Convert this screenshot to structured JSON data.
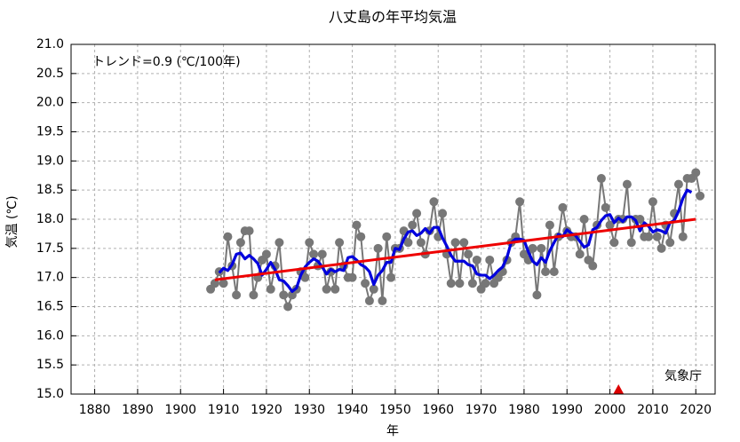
{
  "chart_data": {
    "type": "line",
    "title": "八丈島の年平均気温",
    "annotation": "トレンド=0.9 (℃/100年)",
    "source": "気象庁",
    "xlabel": "年",
    "ylabel": "気温 (℃)",
    "x": [
      1907,
      1908,
      1909,
      1910,
      1911,
      1912,
      1913,
      1914,
      1915,
      1916,
      1917,
      1918,
      1919,
      1920,
      1921,
      1922,
      1923,
      1924,
      1925,
      1926,
      1927,
      1928,
      1929,
      1930,
      1931,
      1932,
      1933,
      1934,
      1935,
      1936,
      1937,
      1938,
      1939,
      1940,
      1941,
      1942,
      1943,
      1944,
      1945,
      1946,
      1947,
      1948,
      1949,
      1950,
      1951,
      1952,
      1953,
      1954,
      1955,
      1956,
      1957,
      1958,
      1959,
      1960,
      1961,
      1962,
      1963,
      1964,
      1965,
      1966,
      1967,
      1968,
      1969,
      1970,
      1971,
      1972,
      1973,
      1974,
      1975,
      1976,
      1977,
      1978,
      1979,
      1980,
      1981,
      1982,
      1983,
      1984,
      1985,
      1986,
      1987,
      1988,
      1989,
      1990,
      1991,
      1992,
      1993,
      1994,
      1995,
      1996,
      1997,
      1998,
      1999,
      2000,
      2001,
      2002,
      2003,
      2004,
      2005,
      2006,
      2007,
      2008,
      2009,
      2010,
      2011,
      2012,
      2013,
      2014,
      2015,
      2016,
      2017,
      2018,
      2019,
      2020,
      2021
    ],
    "series": [
      {
        "color": "#777777",
        "markers": true,
        "values": [
          16.8,
          16.9,
          17.1,
          16.9,
          17.7,
          17.2,
          16.7,
          17.6,
          17.8,
          17.8,
          16.7,
          17.0,
          17.3,
          17.4,
          16.8,
          17.2,
          17.6,
          16.7,
          16.5,
          16.7,
          16.8,
          17.1,
          17.0,
          17.6,
          17.4,
          17.2,
          17.4,
          16.8,
          17.1,
          16.8,
          17.6,
          17.2,
          17.0,
          17.0,
          17.9,
          17.7,
          16.9,
          16.6,
          16.8,
          17.5,
          16.6,
          17.7,
          17.0,
          17.5,
          17.5,
          17.8,
          17.6,
          17.9,
          18.1,
          17.6,
          17.4,
          17.8,
          18.3,
          17.7,
          18.1,
          17.4,
          16.9,
          17.6,
          16.9,
          17.6,
          17.4,
          16.9,
          17.3,
          16.8,
          16.9,
          17.3,
          16.9,
          17.0,
          17.1,
          17.3,
          17.6,
          17.7,
          18.3,
          17.4,
          17.3,
          17.5,
          16.7,
          17.5,
          17.1,
          17.9,
          17.1,
          17.7,
          18.2,
          17.8,
          17.7,
          17.7,
          17.4,
          18.0,
          17.3,
          17.2,
          17.9,
          18.7,
          18.2,
          17.9,
          17.6,
          18.0,
          18.0,
          18.6,
          17.6,
          18.0,
          18.0,
          17.7,
          17.7,
          18.3,
          17.7,
          17.5,
          17.9,
          17.6,
          18.1,
          18.6,
          17.7,
          18.7,
          18.7,
          18.8,
          18.4
        ]
      },
      {
        "color": "#0000dd",
        "markers": false,
        "values": [
          null,
          null,
          17.08,
          17.16,
          17.12,
          17.22,
          17.4,
          17.42,
          17.32,
          17.38,
          17.32,
          17.24,
          17.04,
          17.14,
          17.26,
          17.14,
          16.96,
          16.94,
          16.86,
          16.76,
          16.82,
          17.04,
          17.18,
          17.26,
          17.32,
          17.28,
          17.18,
          17.06,
          17.14,
          17.1,
          17.14,
          17.12,
          17.34,
          17.36,
          17.3,
          17.22,
          17.18,
          17.1,
          16.88,
          17.04,
          17.12,
          17.26,
          17.26,
          17.5,
          17.48,
          17.66,
          17.78,
          17.8,
          17.72,
          17.76,
          17.84,
          17.76,
          17.86,
          17.86,
          17.68,
          17.54,
          17.38,
          17.28,
          17.28,
          17.28,
          17.22,
          17.2,
          17.06,
          17.04,
          17.04,
          16.98,
          17.04,
          17.12,
          17.18,
          17.34,
          17.6,
          17.66,
          17.66,
          17.64,
          17.44,
          17.28,
          17.22,
          17.34,
          17.26,
          17.46,
          17.6,
          17.74,
          17.7,
          17.82,
          17.76,
          17.72,
          17.62,
          17.52,
          17.56,
          17.82,
          17.86,
          17.98,
          18.06,
          18.08,
          17.94,
          18.02,
          17.96,
          18.04,
          18.04,
          17.98,
          17.8,
          17.94,
          17.88,
          17.78,
          17.82,
          17.8,
          17.76,
          17.94,
          17.98,
          18.14,
          18.36,
          18.5,
          18.46,
          null,
          null
        ]
      }
    ],
    "trend": {
      "color": "#ee0000",
      "x": [
        1908,
        2020
      ],
      "values": [
        16.96,
        18.0
      ]
    },
    "event_markers": {
      "color": "#dd0000",
      "x": [
        2002
      ]
    },
    "xlim": [
      1874.5,
      2024.5
    ],
    "ylim": [
      15,
      21
    ],
    "xticks": [
      1880,
      1890,
      1900,
      1910,
      1920,
      1930,
      1940,
      1950,
      1960,
      1970,
      1980,
      1990,
      2000,
      2010,
      2020
    ],
    "yticks": [
      {
        "value": 15,
        "label": "15.0"
      },
      15.5,
      {
        "value": 16,
        "label": "16.0"
      },
      16.5,
      {
        "value": 17,
        "label": "17.0"
      },
      17.5,
      {
        "value": 18,
        "label": "18.0"
      },
      18.5,
      {
        "value": 19,
        "label": "19.0"
      },
      19.5,
      {
        "value": 20,
        "label": "20.0"
      },
      20.5,
      {
        "value": 21,
        "label": "21.0"
      }
    ],
    "grid": true
  }
}
